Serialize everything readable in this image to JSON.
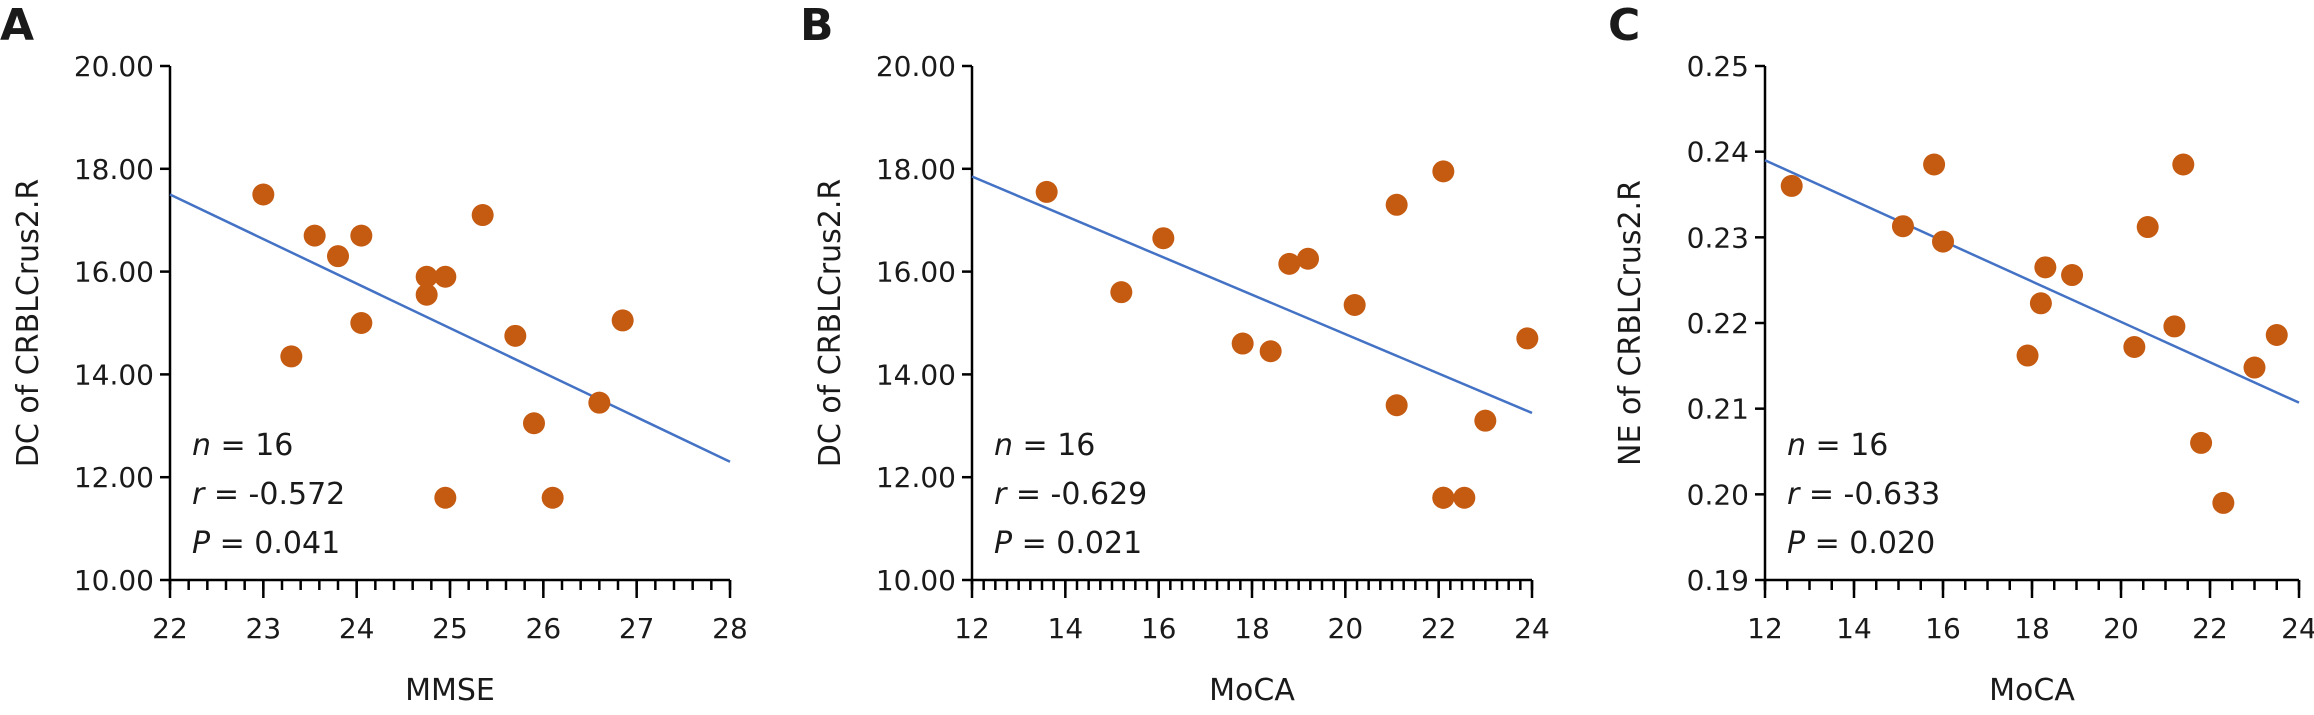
{
  "chart_data": [
    {
      "panel": "A",
      "type": "scatter",
      "xlabel": "MMSE",
      "ylabel": "DC of CRBLCrus2.R",
      "xlim": [
        22,
        28
      ],
      "ylim": [
        10,
        20
      ],
      "xticks": [
        "22",
        "23",
        "24",
        "25",
        "26",
        "27",
        "28"
      ],
      "yticks": [
        "10.00",
        "12.00",
        "14.00",
        "16.00",
        "18.00",
        "20.00"
      ],
      "x_minor_step": 0.2,
      "grid": false,
      "points": [
        {
          "x": 23.0,
          "y": 17.5
        },
        {
          "x": 23.3,
          "y": 14.35
        },
        {
          "x": 23.55,
          "y": 16.7
        },
        {
          "x": 23.8,
          "y": 16.3
        },
        {
          "x": 24.05,
          "y": 16.7
        },
        {
          "x": 24.05,
          "y": 15.0
        },
        {
          "x": 24.75,
          "y": 15.9
        },
        {
          "x": 24.75,
          "y": 15.55
        },
        {
          "x": 24.95,
          "y": 15.9
        },
        {
          "x": 24.95,
          "y": 11.6
        },
        {
          "x": 25.35,
          "y": 17.1
        },
        {
          "x": 25.7,
          "y": 14.75
        },
        {
          "x": 25.9,
          "y": 13.05
        },
        {
          "x": 26.1,
          "y": 11.6
        },
        {
          "x": 26.6,
          "y": 13.45
        },
        {
          "x": 26.85,
          "y": 15.05
        }
      ],
      "fit_line": {
        "x": [
          22,
          28
        ],
        "y": [
          17.5,
          12.3
        ]
      },
      "stats": {
        "n_label": "n",
        "n_value": " = 16",
        "r_label": "r",
        "r_value": " = -0.572",
        "p_label": "P",
        "p_value": " = 0.041"
      }
    },
    {
      "panel": "B",
      "type": "scatter",
      "xlabel": "MoCA",
      "ylabel": "DC of CRBLCrus2.R",
      "xlim": [
        12,
        24
      ],
      "ylim": [
        10,
        20
      ],
      "xticks": [
        "12",
        "14",
        "16",
        "18",
        "20",
        "22",
        "24"
      ],
      "yticks": [
        "10.00",
        "12.00",
        "14.00",
        "16.00",
        "18.00",
        "20.00"
      ],
      "x_minor_step": 0.25,
      "grid": false,
      "points": [
        {
          "x": 13.6,
          "y": 17.55
        },
        {
          "x": 15.2,
          "y": 15.6
        },
        {
          "x": 16.1,
          "y": 16.65
        },
        {
          "x": 17.8,
          "y": 14.6
        },
        {
          "x": 18.4,
          "y": 14.45
        },
        {
          "x": 18.8,
          "y": 16.15
        },
        {
          "x": 19.2,
          "y": 16.25
        },
        {
          "x": 20.2,
          "y": 15.35
        },
        {
          "x": 21.1,
          "y": 17.3
        },
        {
          "x": 21.1,
          "y": 13.4
        },
        {
          "x": 22.1,
          "y": 17.95
        },
        {
          "x": 22.1,
          "y": 11.6
        },
        {
          "x": 22.55,
          "y": 11.6
        },
        {
          "x": 23.0,
          "y": 13.1
        },
        {
          "x": 23.9,
          "y": 14.7
        },
        {
          "x": 22.1,
          "y": 11.6
        }
      ],
      "fit_line": {
        "x": [
          12,
          24
        ],
        "y": [
          17.85,
          13.25
        ]
      },
      "stats": {
        "n_label": "n",
        "n_value": " = 16",
        "r_label": "r",
        "r_value": " = -0.629",
        "p_label": "P",
        "p_value": " = 0.021"
      }
    },
    {
      "panel": "C",
      "type": "scatter",
      "xlabel": "MoCA",
      "ylabel": "NE of CRBLCrus2.R",
      "xlim": [
        12,
        24
      ],
      "ylim": [
        0.19,
        0.25
      ],
      "xticks": [
        "12",
        "14",
        "16",
        "18",
        "20",
        "22",
        "24"
      ],
      "yticks": [
        "0.19",
        "0.20",
        "0.21",
        "0.22",
        "0.23",
        "0.24",
        "0.25"
      ],
      "x_minor_step": 0.5,
      "grid": false,
      "points": [
        {
          "x": 12.6,
          "y": 0.236
        },
        {
          "x": 15.1,
          "y": 0.2313
        },
        {
          "x": 15.8,
          "y": 0.2385
        },
        {
          "x": 16.0,
          "y": 0.2295
        },
        {
          "x": 17.9,
          "y": 0.2162
        },
        {
          "x": 18.2,
          "y": 0.2223
        },
        {
          "x": 18.3,
          "y": 0.2265
        },
        {
          "x": 18.9,
          "y": 0.2256
        },
        {
          "x": 20.3,
          "y": 0.2172
        },
        {
          "x": 20.6,
          "y": 0.2312
        },
        {
          "x": 21.2,
          "y": 0.2196
        },
        {
          "x": 21.4,
          "y": 0.2385
        },
        {
          "x": 21.8,
          "y": 0.206
        },
        {
          "x": 22.3,
          "y": 0.199
        },
        {
          "x": 23.0,
          "y": 0.2148
        },
        {
          "x": 23.5,
          "y": 0.2186
        }
      ],
      "fit_line": {
        "x": [
          12,
          24
        ],
        "y": [
          0.239,
          0.2107
        ]
      },
      "stats": {
        "n_label": "n",
        "n_value": " = 16",
        "r_label": "r",
        "r_value": " = -0.633",
        "p_label": "P",
        "p_value": " = 0.020"
      }
    }
  ]
}
